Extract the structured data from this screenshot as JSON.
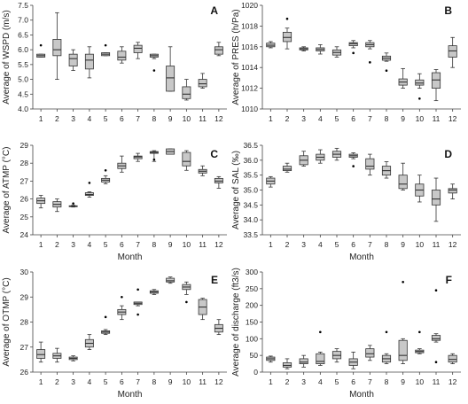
{
  "chart_data": [
    {
      "type": "box",
      "panel_label": "A",
      "xlabel": "",
      "ylabel": "Average of WSPD (m/s)",
      "ylim": [
        4.0,
        7.5
      ],
      "yticks": [
        "4.0",
        "4.5",
        "5.0",
        "5.5",
        "6.0",
        "6.5",
        "7.0",
        "7.5"
      ],
      "yticks_val": [
        4.0,
        4.5,
        5.0,
        5.5,
        6.0,
        6.5,
        7.0,
        7.5
      ],
      "categories": [
        "1",
        "2",
        "3",
        "4",
        "5",
        "6",
        "7",
        "8",
        "9",
        "10",
        "11",
        "12"
      ],
      "boxes": [
        {
          "whisker_low": 5.75,
          "q1": 5.75,
          "median": 5.8,
          "q3": 5.85,
          "whisker_high": 5.85,
          "outliers": [
            6.15
          ]
        },
        {
          "whisker_low": 5.0,
          "q1": 5.8,
          "median": 6.0,
          "q3": 6.35,
          "whisker_high": 7.25,
          "outliers": []
        },
        {
          "whisker_low": 5.3,
          "q1": 5.45,
          "median": 5.7,
          "q3": 5.85,
          "whisker_high": 6.0,
          "outliers": []
        },
        {
          "whisker_low": 5.05,
          "q1": 5.35,
          "median": 5.65,
          "q3": 5.85,
          "whisker_high": 6.1,
          "outliers": []
        },
        {
          "whisker_low": 5.8,
          "q1": 5.8,
          "median": 5.85,
          "q3": 5.9,
          "whisker_high": 5.9,
          "outliers": [
            6.15
          ]
        },
        {
          "whisker_low": 5.55,
          "q1": 5.65,
          "median": 5.75,
          "q3": 5.95,
          "whisker_high": 6.1,
          "outliers": []
        },
        {
          "whisker_low": 5.7,
          "q1": 5.9,
          "median": 6.05,
          "q3": 6.15,
          "whisker_high": 6.25,
          "outliers": []
        },
        {
          "whisker_low": 5.7,
          "q1": 5.75,
          "median": 5.8,
          "q3": 5.85,
          "whisker_high": 5.85,
          "outliers": [
            5.3
          ]
        },
        {
          "whisker_low": 4.6,
          "q1": 4.6,
          "median": 5.05,
          "q3": 5.45,
          "whisker_high": 6.1,
          "outliers": []
        },
        {
          "whisker_low": 4.3,
          "q1": 4.35,
          "median": 4.5,
          "q3": 4.75,
          "whisker_high": 5.0,
          "outliers": []
        },
        {
          "whisker_low": 4.7,
          "q1": 4.75,
          "median": 4.85,
          "q3": 5.0,
          "whisker_high": 5.2,
          "outliers": []
        },
        {
          "whisker_low": 5.8,
          "q1": 5.85,
          "median": 6.0,
          "q3": 6.1,
          "whisker_high": 6.25,
          "outliers": []
        }
      ]
    },
    {
      "type": "box",
      "panel_label": "B",
      "xlabel": "",
      "ylabel": "Average of PRES (h/Pa)",
      "ylim": [
        1010,
        1020
      ],
      "yticks": [
        "1010",
        "1012",
        "1014",
        "1016",
        "1018",
        "1020"
      ],
      "yticks_val": [
        1010,
        1012,
        1014,
        1016,
        1018,
        1020
      ],
      "categories": [
        "1",
        "2",
        "3",
        "4",
        "5",
        "6",
        "7",
        "8",
        "9",
        "10",
        "11",
        "12"
      ],
      "boxes": [
        {
          "whisker_low": 1015.9,
          "q1": 1016.0,
          "median": 1016.15,
          "q3": 1016.35,
          "whisker_high": 1016.5,
          "outliers": []
        },
        {
          "whisker_low": 1015.8,
          "q1": 1016.5,
          "median": 1016.9,
          "q3": 1017.4,
          "whisker_high": 1017.8,
          "outliers": [
            1018.7
          ]
        },
        {
          "whisker_low": 1015.6,
          "q1": 1015.7,
          "median": 1015.8,
          "q3": 1015.9,
          "whisker_high": 1016.0,
          "outliers": []
        },
        {
          "whisker_low": 1015.3,
          "q1": 1015.6,
          "median": 1015.75,
          "q3": 1015.9,
          "whisker_high": 1016.2,
          "outliers": []
        },
        {
          "whisker_low": 1015.0,
          "q1": 1015.2,
          "median": 1015.45,
          "q3": 1015.7,
          "whisker_high": 1016.0,
          "outliers": []
        },
        {
          "whisker_low": 1015.9,
          "q1": 1016.1,
          "median": 1016.3,
          "q3": 1016.4,
          "whisker_high": 1016.6,
          "outliers": [
            1015.4
          ]
        },
        {
          "whisker_low": 1015.8,
          "q1": 1016.0,
          "median": 1016.2,
          "q3": 1016.4,
          "whisker_high": 1016.6,
          "outliers": [
            1014.5
          ]
        },
        {
          "whisker_low": 1014.6,
          "q1": 1014.7,
          "median": 1014.9,
          "q3": 1015.1,
          "whisker_high": 1015.4,
          "outliers": [
            1013.7
          ]
        },
        {
          "whisker_low": 1012.0,
          "q1": 1012.3,
          "median": 1012.6,
          "q3": 1012.9,
          "whisker_high": 1013.9,
          "outliers": []
        },
        {
          "whisker_low": 1012.0,
          "q1": 1012.3,
          "median": 1012.5,
          "q3": 1012.8,
          "whisker_high": 1013.4,
          "outliers": [
            1011.0
          ]
        },
        {
          "whisker_low": 1010.8,
          "q1": 1012.0,
          "median": 1012.8,
          "q3": 1013.5,
          "whisker_high": 1013.8,
          "outliers": []
        },
        {
          "whisker_low": 1014.0,
          "q1": 1015.0,
          "median": 1015.6,
          "q3": 1016.1,
          "whisker_high": 1016.9,
          "outliers": []
        }
      ]
    },
    {
      "type": "box",
      "panel_label": "C",
      "xlabel": "Month",
      "ylabel": "Average of ATMP (°C)",
      "ylim": [
        24,
        29
      ],
      "yticks": [
        "24",
        "25",
        "26",
        "27",
        "28",
        "29"
      ],
      "yticks_val": [
        24,
        25,
        26,
        27,
        28,
        29
      ],
      "categories": [
        "1",
        "2",
        "3",
        "4",
        "5",
        "6",
        "7",
        "8",
        "9",
        "10",
        "11",
        "12"
      ],
      "boxes": [
        {
          "whisker_low": 25.5,
          "q1": 25.75,
          "median": 25.9,
          "q3": 26.05,
          "whisker_high": 26.2,
          "outliers": []
        },
        {
          "whisker_low": 25.3,
          "q1": 25.55,
          "median": 25.7,
          "q3": 25.85,
          "whisker_high": 26.0,
          "outliers": []
        },
        {
          "whisker_low": 25.55,
          "q1": 25.58,
          "median": 25.6,
          "q3": 25.62,
          "whisker_high": 25.65,
          "outliers": [
            25.75
          ]
        },
        {
          "whisker_low": 26.1,
          "q1": 26.2,
          "median": 26.25,
          "q3": 26.35,
          "whisker_high": 26.4,
          "outliers": [
            26.9
          ]
        },
        {
          "whisker_low": 26.85,
          "q1": 26.95,
          "median": 27.05,
          "q3": 27.15,
          "whisker_high": 27.3,
          "outliers": [
            27.6
          ]
        },
        {
          "whisker_low": 27.5,
          "q1": 27.7,
          "median": 27.85,
          "q3": 28.0,
          "whisker_high": 28.4,
          "outliers": []
        },
        {
          "whisker_low": 28.1,
          "q1": 28.25,
          "median": 28.35,
          "q3": 28.4,
          "whisker_high": 28.55,
          "outliers": []
        },
        {
          "whisker_low": 28.1,
          "q1": 28.55,
          "median": 28.6,
          "q3": 28.65,
          "whisker_high": 28.7,
          "outliers": [
            28.2
          ]
        },
        {
          "whisker_low": 28.5,
          "q1": 28.5,
          "median": 28.65,
          "q3": 28.8,
          "whisker_high": 28.8,
          "outliers": []
        },
        {
          "whisker_low": 27.6,
          "q1": 27.85,
          "median": 28.1,
          "q3": 28.6,
          "whisker_high": 28.7,
          "outliers": []
        },
        {
          "whisker_low": 27.3,
          "q1": 27.45,
          "median": 27.55,
          "q3": 27.65,
          "whisker_high": 27.85,
          "outliers": []
        },
        {
          "whisker_low": 26.6,
          "q1": 26.9,
          "median": 27.0,
          "q3": 27.15,
          "whisker_high": 27.25,
          "outliers": []
        }
      ]
    },
    {
      "type": "box",
      "panel_label": "D",
      "xlabel": "Month",
      "ylabel": "Average of SAL (‰)",
      "ylim": [
        33.5,
        36.5
      ],
      "yticks": [
        "33.5",
        "34.0",
        "34.5",
        "35.0",
        "35.5",
        "36.0",
        "36.5"
      ],
      "yticks_val": [
        33.5,
        34.0,
        34.5,
        35.0,
        35.5,
        36.0,
        36.5
      ],
      "categories": [
        "1",
        "2",
        "3",
        "4",
        "5",
        "6",
        "7",
        "8",
        "9",
        "10",
        "11",
        "12"
      ],
      "boxes": [
        {
          "whisker_low": 35.1,
          "q1": 35.2,
          "median": 35.3,
          "q3": 35.4,
          "whisker_high": 35.45,
          "outliers": []
        },
        {
          "whisker_low": 35.6,
          "q1": 35.65,
          "median": 35.7,
          "q3": 35.8,
          "whisker_high": 35.9,
          "outliers": []
        },
        {
          "whisker_low": 35.8,
          "q1": 35.85,
          "median": 36.0,
          "q3": 36.15,
          "whisker_high": 36.3,
          "outliers": []
        },
        {
          "whisker_low": 35.9,
          "q1": 36.0,
          "median": 36.1,
          "q3": 36.2,
          "whisker_high": 36.35,
          "outliers": []
        },
        {
          "whisker_low": 36.0,
          "q1": 36.1,
          "median": 36.2,
          "q3": 36.3,
          "whisker_high": 36.4,
          "outliers": []
        },
        {
          "whisker_low": 36.05,
          "q1": 36.1,
          "median": 36.15,
          "q3": 36.2,
          "whisker_high": 36.25,
          "outliers": [
            35.8
          ]
        },
        {
          "whisker_low": 35.5,
          "q1": 35.7,
          "median": 35.8,
          "q3": 36.05,
          "whisker_high": 36.2,
          "outliers": []
        },
        {
          "whisker_low": 35.4,
          "q1": 35.5,
          "median": 35.65,
          "q3": 35.8,
          "whisker_high": 35.95,
          "outliers": []
        },
        {
          "whisker_low": 35.0,
          "q1": 35.05,
          "median": 35.2,
          "q3": 35.5,
          "whisker_high": 35.9,
          "outliers": []
        },
        {
          "whisker_low": 34.6,
          "q1": 34.8,
          "median": 35.0,
          "q3": 35.2,
          "whisker_high": 35.5,
          "outliers": []
        },
        {
          "whisker_low": 33.95,
          "q1": 34.5,
          "median": 34.7,
          "q3": 35.0,
          "whisker_high": 35.4,
          "outliers": []
        },
        {
          "whisker_low": 34.7,
          "q1": 34.9,
          "median": 35.0,
          "q3": 35.05,
          "whisker_high": 35.2,
          "outliers": []
        }
      ]
    },
    {
      "type": "box",
      "panel_label": "E",
      "xlabel": "Month",
      "ylabel": "Average of OTMP (°C)",
      "ylim": [
        26,
        30
      ],
      "yticks": [
        "26",
        "27",
        "28",
        "29",
        "30"
      ],
      "yticks_val": [
        26,
        27,
        28,
        29,
        30
      ],
      "categories": [
        "1",
        "2",
        "3",
        "4",
        "5",
        "6",
        "7",
        "8",
        "9",
        "10",
        "11",
        "12"
      ],
      "boxes": [
        {
          "whisker_low": 26.4,
          "q1": 26.55,
          "median": 26.7,
          "q3": 26.9,
          "whisker_high": 27.2,
          "outliers": []
        },
        {
          "whisker_low": 26.4,
          "q1": 26.55,
          "median": 26.65,
          "q3": 26.75,
          "whisker_high": 26.95,
          "outliers": []
        },
        {
          "whisker_low": 26.45,
          "q1": 26.5,
          "median": 26.55,
          "q3": 26.6,
          "whisker_high": 26.65,
          "outliers": []
        },
        {
          "whisker_low": 26.9,
          "q1": 27.0,
          "median": 27.15,
          "q3": 27.3,
          "whisker_high": 27.5,
          "outliers": []
        },
        {
          "whisker_low": 27.5,
          "q1": 27.55,
          "median": 27.6,
          "q3": 27.65,
          "whisker_high": 27.7,
          "outliers": [
            28.2
          ]
        },
        {
          "whisker_low": 28.1,
          "q1": 28.3,
          "median": 28.4,
          "q3": 28.5,
          "whisker_high": 28.65,
          "outliers": [
            29.0
          ]
        },
        {
          "whisker_low": 28.65,
          "q1": 28.7,
          "median": 28.75,
          "q3": 28.8,
          "whisker_high": 28.8,
          "outliers": [
            29.3,
            28.3
          ]
        },
        {
          "whisker_low": 29.1,
          "q1": 29.15,
          "median": 29.2,
          "q3": 29.25,
          "whisker_high": 29.3,
          "outliers": []
        },
        {
          "whisker_low": 29.55,
          "q1": 29.6,
          "median": 29.65,
          "q3": 29.75,
          "whisker_high": 29.8,
          "outliers": []
        },
        {
          "whisker_low": 29.1,
          "q1": 29.3,
          "median": 29.4,
          "q3": 29.5,
          "whisker_high": 29.6,
          "outliers": [
            28.8
          ]
        },
        {
          "whisker_low": 28.1,
          "q1": 28.3,
          "median": 28.6,
          "q3": 28.9,
          "whisker_high": 28.95,
          "outliers": []
        },
        {
          "whisker_low": 27.5,
          "q1": 27.6,
          "median": 27.75,
          "q3": 27.9,
          "whisker_high": 28.1,
          "outliers": []
        }
      ]
    },
    {
      "type": "box",
      "panel_label": "F",
      "xlabel": "Month",
      "ylabel": "Average of discharge (ft3/s)",
      "ylim": [
        0,
        300
      ],
      "yticks": [
        "0",
        "50",
        "100",
        "150",
        "200",
        "250",
        "300"
      ],
      "yticks_val": [
        0,
        50,
        100,
        150,
        200,
        250,
        300
      ],
      "categories": [
        "1",
        "2",
        "3",
        "4",
        "5",
        "6",
        "7",
        "8",
        "9",
        "10",
        "11",
        "12"
      ],
      "boxes": [
        {
          "whisker_low": 30,
          "q1": 35,
          "median": 40,
          "q3": 45,
          "whisker_high": 48,
          "outliers": []
        },
        {
          "whisker_low": 10,
          "q1": 15,
          "median": 20,
          "q3": 28,
          "whisker_high": 40,
          "outliers": []
        },
        {
          "whisker_low": 15,
          "q1": 25,
          "median": 30,
          "q3": 40,
          "whisker_high": 50,
          "outliers": []
        },
        {
          "whisker_low": 20,
          "q1": 25,
          "median": 32,
          "q3": 55,
          "whisker_high": 60,
          "outliers": [
            120
          ]
        },
        {
          "whisker_low": 30,
          "q1": 40,
          "median": 50,
          "q3": 62,
          "whisker_high": 70,
          "outliers": []
        },
        {
          "whisker_low": 10,
          "q1": 20,
          "median": 30,
          "q3": 40,
          "whisker_high": 60,
          "outliers": []
        },
        {
          "whisker_low": 35,
          "q1": 45,
          "median": 55,
          "q3": 70,
          "whisker_high": 80,
          "outliers": []
        },
        {
          "whisker_low": 25,
          "q1": 30,
          "median": 40,
          "q3": 50,
          "whisker_high": 55,
          "outliers": [
            120
          ]
        },
        {
          "whisker_low": 25,
          "q1": 35,
          "median": 50,
          "q3": 95,
          "whisker_high": 100,
          "outliers": [
            270
          ]
        },
        {
          "whisker_low": 55,
          "q1": 58,
          "median": 62,
          "q3": 66,
          "whisker_high": 70,
          "outliers": [
            120
          ]
        },
        {
          "whisker_low": 90,
          "q1": 95,
          "median": 100,
          "q3": 110,
          "whisker_high": 115,
          "outliers": [
            245,
            30
          ]
        },
        {
          "whisker_low": 25,
          "q1": 30,
          "median": 38,
          "q3": 50,
          "whisker_high": 55,
          "outliers": []
        }
      ]
    }
  ],
  "colors": {
    "box_fill": "#c8c8c8",
    "stroke": "#333333",
    "axis": "#444444",
    "outlier": "#000000"
  }
}
